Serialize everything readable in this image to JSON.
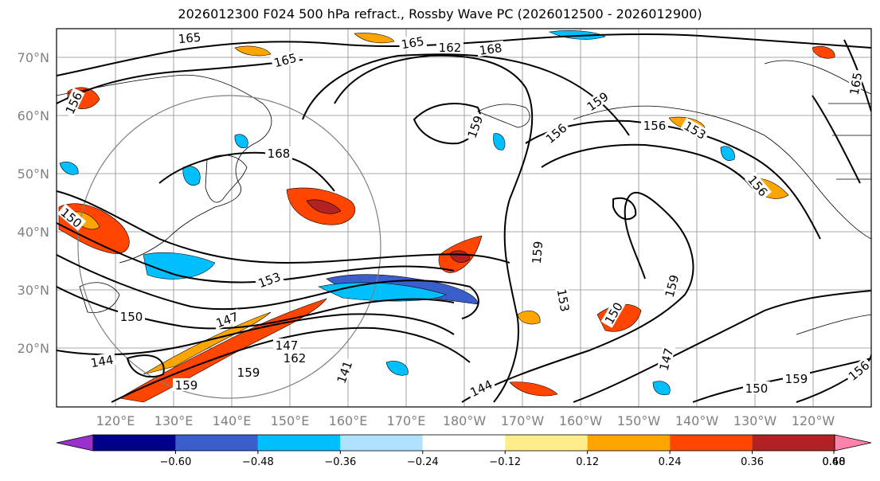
{
  "title": "2026012300 F024 500 hPa refract., Rossby Wave PC (2026012500 - 2026012900)",
  "map": {
    "lat_labels": [
      "70°N",
      "60°N",
      "50°N",
      "40°N",
      "30°N",
      "20°N"
    ],
    "lon_labels": [
      "120°E",
      "130°E",
      "140°E",
      "150°E",
      "160°E",
      "170°E",
      "180°W",
      "170°W",
      "160°W",
      "150°W",
      "140°W",
      "130°W",
      "120°W"
    ],
    "contour_labels": [
      "165",
      "165",
      "165",
      "162",
      "168",
      "168",
      "156",
      "159",
      "156",
      "159",
      "156",
      "153",
      "156",
      "159",
      "150",
      "153",
      "159",
      "153",
      "147",
      "150",
      "144",
      "147",
      "141",
      "144",
      "159",
      "159",
      "150",
      "159",
      "156",
      "165",
      "150",
      "147",
      "162"
    ]
  },
  "colorbar": {
    "ticks": [
      "−0.60",
      "−0.48",
      "−0.36",
      "−0.24",
      "−0.12",
      "0.12",
      "0.24",
      "0.36",
      "0.48",
      "0.60"
    ],
    "colors": [
      "#9932cc",
      "#00008b",
      "#3a5fcd",
      "#00bfff",
      "#b0e2ff",
      "#ffffff",
      "#ffec8b",
      "#ffa500",
      "#ff4500",
      "#b22222",
      "#ff82ab"
    ]
  }
}
